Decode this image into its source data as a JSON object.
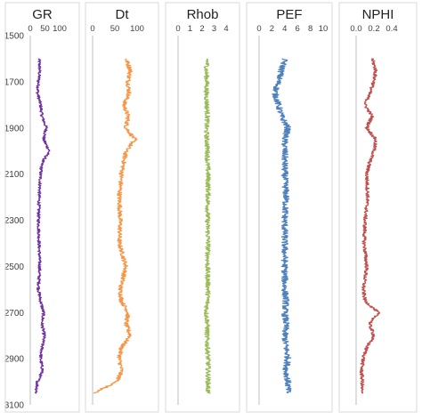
{
  "chart_data": {
    "type": "line",
    "orientation": "vertical-well-log",
    "depth_axis": {
      "range": [
        1500,
        3100
      ],
      "ticks": [
        "1500",
        "1700",
        "1900",
        "2100",
        "2300",
        "2500",
        "2700",
        "2900",
        "3100"
      ],
      "inverted": true
    },
    "tracks": [
      {
        "name": "GR",
        "color": "#7030a0",
        "xlim": [
          0,
          100
        ],
        "xticks": [
          "0",
          "50",
          "100"
        ],
        "depth": [
          1600,
          1650,
          1700,
          1750,
          1800,
          1850,
          1900,
          1950,
          2000,
          2050,
          2100,
          2200,
          2300,
          2400,
          2500,
          2600,
          2650,
          2700,
          2750,
          2800,
          2850,
          2900,
          2950,
          3000,
          3050
        ],
        "values": [
          30,
          32,
          28,
          25,
          35,
          40,
          55,
          45,
          65,
          40,
          35,
          30,
          28,
          30,
          32,
          28,
          35,
          45,
          40,
          48,
          40,
          35,
          42,
          25,
          20
        ]
      },
      {
        "name": "Dt",
        "color": "#f79646",
        "xlim": [
          0,
          100
        ],
        "xticks": [
          "0",
          "50",
          "100"
        ],
        "depth": [
          1600,
          1650,
          1700,
          1750,
          1800,
          1850,
          1900,
          1950,
          2000,
          2050,
          2100,
          2200,
          2300,
          2400,
          2500,
          2600,
          2650,
          2700,
          2750,
          2800,
          2850,
          2900,
          2950,
          3000,
          3050
        ],
        "values": [
          75,
          85,
          80,
          82,
          70,
          80,
          75,
          95,
          75,
          70,
          65,
          60,
          62,
          60,
          75,
          62,
          65,
          80,
          75,
          85,
          65,
          60,
          65,
          55,
          0
        ]
      },
      {
        "name": "Rhob",
        "color": "#9bbb59",
        "xlim": [
          0,
          4
        ],
        "xticks": [
          "0",
          "1",
          "2",
          "3",
          "4"
        ],
        "depth": [
          1600,
          1650,
          1700,
          1750,
          1800,
          1850,
          1900,
          1950,
          2000,
          2050,
          2100,
          2200,
          2300,
          2400,
          2500,
          2600,
          2650,
          2700,
          2750,
          2800,
          2850,
          2900,
          2950,
          3000,
          3050
        ],
        "values": [
          2.45,
          2.35,
          2.4,
          2.35,
          2.4,
          2.45,
          2.35,
          2.4,
          2.45,
          2.45,
          2.5,
          2.5,
          2.45,
          2.5,
          2.45,
          2.5,
          2.45,
          2.35,
          2.45,
          2.4,
          2.45,
          2.5,
          2.5,
          2.5,
          2.5
        ]
      },
      {
        "name": "PEF",
        "color": "#4f81bd",
        "xlim": [
          0,
          10
        ],
        "xticks": [
          "0",
          "2",
          "4",
          "6",
          "8",
          "10"
        ],
        "depth": [
          1600,
          1650,
          1700,
          1750,
          1800,
          1850,
          1900,
          1950,
          2000,
          2050,
          2100,
          2200,
          2300,
          2400,
          2500,
          2600,
          2650,
          2700,
          2750,
          2800,
          2850,
          2900,
          2950,
          3000,
          3050
        ],
        "values": [
          4,
          3.5,
          3,
          2.5,
          3,
          3.5,
          4.5,
          4,
          4,
          4,
          4,
          4.2,
          4,
          4,
          4,
          4,
          4.2,
          4,
          4.2,
          4,
          4.2,
          4.5,
          4.2,
          4.5,
          4.5
        ]
      },
      {
        "name": "NPHI",
        "color": "#c0504d",
        "xlim": [
          0,
          0.4
        ],
        "xticks": [
          "0.0",
          "0.2",
          "0.4"
        ],
        "depth": [
          1600,
          1650,
          1700,
          1750,
          1800,
          1850,
          1900,
          1950,
          2000,
          2050,
          2100,
          2200,
          2300,
          2400,
          2500,
          2600,
          2650,
          2700,
          2750,
          2800,
          2850,
          2900,
          2950,
          3000,
          3050
        ],
        "values": [
          0.18,
          0.22,
          0.2,
          0.15,
          0.1,
          0.18,
          0.12,
          0.22,
          0.2,
          0.15,
          0.12,
          0.13,
          0.1,
          0.09,
          0.12,
          0.08,
          0.1,
          0.25,
          0.15,
          0.2,
          0.12,
          0.08,
          0.06,
          0.07,
          0.06
        ]
      }
    ]
  }
}
